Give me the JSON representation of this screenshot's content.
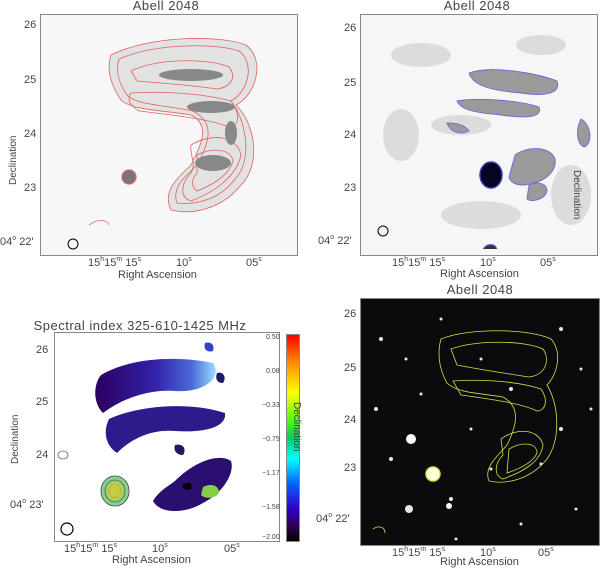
{
  "panels": {
    "tl": {
      "title": "Abell 2048",
      "y_ticks": [
        "26",
        "25",
        "24",
        "23"
      ],
      "y_bottom": {
        "deg": "04",
        "deg_sup": "o",
        "min": "22'"
      },
      "x_ticks": [
        {
          "h": "15",
          "h_sup": "h",
          "m": "15",
          "m_sup": "m",
          "s": "15",
          "s_sup": "s"
        },
        {
          "s": "10",
          "s_sup": "s"
        },
        {
          "s": "05",
          "s_sup": "s"
        }
      ],
      "ylabel": "Declination",
      "xlabel": "Right Ascension",
      "contour_color": "#e06060"
    },
    "tr": {
      "title": "Abell 2048",
      "y_ticks": [
        "26",
        "25",
        "24",
        "23"
      ],
      "y_bottom": {
        "deg": "04",
        "deg_sup": "o",
        "min": "22'"
      },
      "x_ticks": [
        {
          "h": "15",
          "h_sup": "h",
          "m": "15",
          "m_sup": "m",
          "s": "15",
          "s_sup": "s"
        },
        {
          "s": "10",
          "s_sup": "s"
        },
        {
          "s": "05",
          "s_sup": "s"
        }
      ],
      "ylabel": "Declination",
      "xlabel": "Right Ascension",
      "contour_color": "#6a6adc"
    },
    "bl": {
      "title": "Spectral index 325-610-1425 MHz",
      "y_ticks": [
        "26",
        "25",
        "24"
      ],
      "y_bottom": {
        "deg": "04",
        "deg_sup": "o",
        "min": "23'"
      },
      "x_ticks": [
        {
          "h": "15",
          "h_sup": "h",
          "m": "15",
          "m_sup": "m",
          "s": "15",
          "s_sup": "s"
        },
        {
          "s": "10",
          "s_sup": "s"
        },
        {
          "s": "05",
          "s_sup": "s"
        }
      ],
      "ylabel": "Declination",
      "xlabel": "Right Ascension",
      "colorbar_label": "Declination",
      "colorbar_ticks": [
        "0.50",
        "0.08",
        "−0.33",
        "−0.75",
        "−1.17",
        "−1.58",
        "−2.00"
      ]
    },
    "br": {
      "title": "Abell 2048",
      "y_ticks": [
        "26",
        "25",
        "24",
        "23"
      ],
      "y_bottom": {
        "deg": "04",
        "deg_sup": "o",
        "min": "22'"
      },
      "x_ticks": [
        {
          "h": "15",
          "h_sup": "h",
          "m": "15",
          "m_sup": "m",
          "s": "15",
          "s_sup": "s"
        },
        {
          "s": "10",
          "s_sup": "s"
        },
        {
          "s": "05",
          "s_sup": "s"
        }
      ],
      "xlabel": "Right Ascension",
      "contour_color": "#d4e24a"
    }
  }
}
